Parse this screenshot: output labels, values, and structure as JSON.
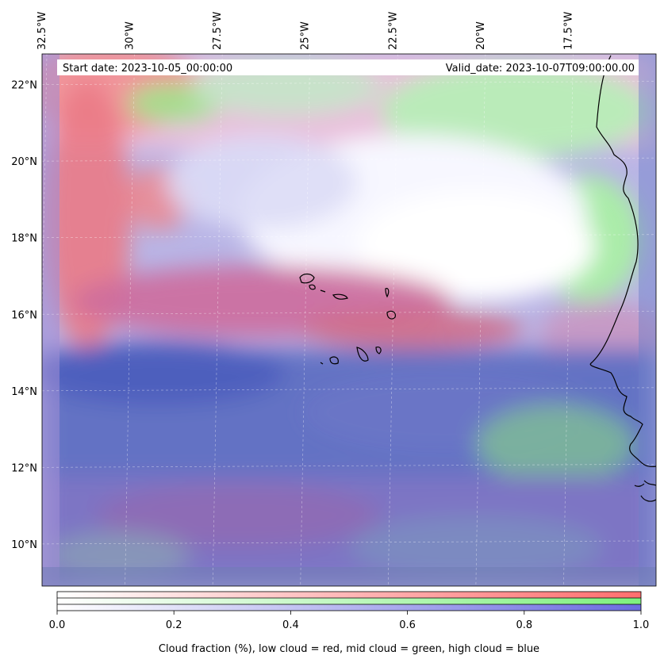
{
  "header": {
    "start_date": "Start date: 2023-10-05_00:00:00",
    "valid_date": "Valid_date: 2023-10-07T09:00:00.00"
  },
  "map": {
    "lon_labels": [
      "32.5°W",
      "30°W",
      "27.5°W",
      "25°W",
      "22.5°W",
      "20°W",
      "17.5°W"
    ],
    "lon_values": [
      -32.5,
      -30,
      -27.5,
      -25,
      -22.5,
      -20,
      -17.5
    ],
    "lat_labels": [
      "22°N",
      "20°N",
      "18°N",
      "16°N",
      "14°N",
      "12°N",
      "10°N"
    ],
    "lat_values": [
      22,
      20,
      18,
      16,
      14,
      12,
      10
    ],
    "lon_range": [
      -32.5,
      -15.0
    ],
    "lat_range": [
      8.9,
      22.8
    ],
    "gridlines": true,
    "features": [
      "coastline-west-africa",
      "cape-verde-islands"
    ]
  },
  "colorbar": {
    "ticks": [
      "0.0",
      "0.2",
      "0.4",
      "0.6",
      "0.8",
      "1.0"
    ],
    "tick_values": [
      0,
      0.2,
      0.4,
      0.6,
      0.8,
      1.0
    ],
    "range": [
      0,
      1
    ],
    "title": "Cloud fraction (%), low cloud = red, mid cloud = green, high cloud = blue",
    "rows": [
      {
        "name": "low",
        "color": "#ff6e6e"
      },
      {
        "name": "mid",
        "color": "#7ef07e"
      },
      {
        "name": "high",
        "color": "#6b6be0"
      }
    ]
  }
}
